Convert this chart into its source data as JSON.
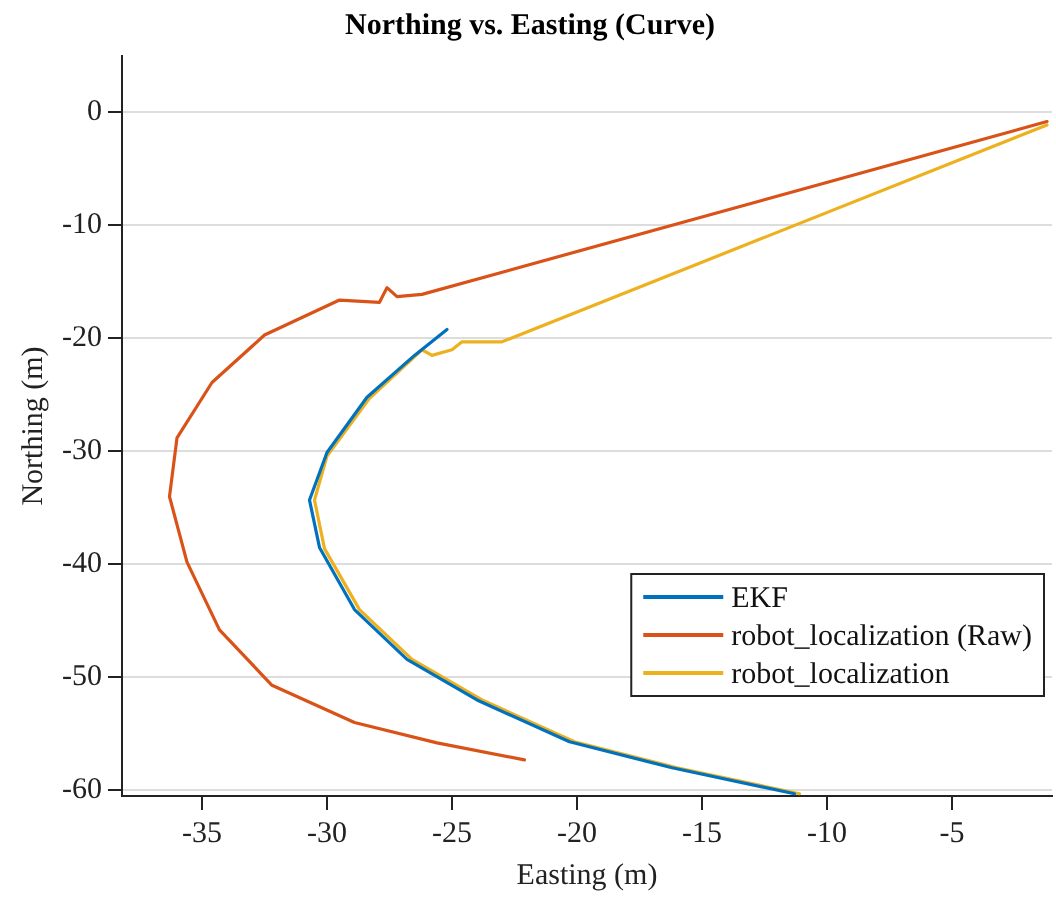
{
  "chart_data": {
    "type": "line",
    "title": "Northing vs. Easting (Curve)",
    "xlabel": "Easting (m)",
    "ylabel": "Northing (m)",
    "xlim": [
      -38.2,
      -1
    ],
    "ylim": [
      -60.5,
      5
    ],
    "xticks": [
      -35,
      -30,
      -25,
      -20,
      -15,
      -10,
      -5
    ],
    "yticks": [
      0,
      -10,
      -20,
      -30,
      -40,
      -50,
      -60
    ],
    "grid": "y",
    "legend": "bottom right",
    "line_style": "solid",
    "marker": "none",
    "series": [
      {
        "name": "EKF",
        "color": "#0072bd",
        "x": [
          -25.2,
          -26.5,
          -28.4,
          -30,
          -30.7,
          -30.7,
          -30.3,
          -28.9,
          -26.8,
          -24,
          -20.3,
          -16.2,
          -11.3
        ],
        "values": [
          -19.2,
          -21.5,
          -25.2,
          -30.1,
          -34.3,
          -34.3,
          -38.5,
          -44,
          -48.4,
          -52,
          -55.7,
          -58,
          -60.3
        ]
      },
      {
        "name": "robot_localization (Raw)",
        "color": "#d95319",
        "x": [
          -1.2,
          -26.2,
          -27.2,
          -27.6,
          -27.9,
          -29.5,
          -32.5,
          -34.6,
          -36,
          -36.3,
          -35.6,
          -34.3,
          -32.2,
          -28.9,
          -25.6,
          -22.1
        ],
        "values": [
          -0.8,
          -16.1,
          -16.3,
          -15.5,
          -16.8,
          -16.6,
          -19.7,
          -23.9,
          -28.8,
          -34,
          -39.8,
          -45.8,
          -50.7,
          -54,
          -55.8,
          -57.3
        ]
      },
      {
        "name": "robot_localization",
        "color": "#edb120",
        "x": [
          -1.2,
          -23,
          -24.6,
          -25,
          -25.8,
          -26.2,
          -28.3,
          -30,
          -30.5,
          -30.1,
          -28.7,
          -26.6,
          -23.8,
          -20.1,
          -16,
          -11.1
        ],
        "values": [
          -1.1,
          -20.3,
          -20.3,
          -21,
          -21.5,
          -21,
          -25.3,
          -30.4,
          -34.3,
          -38.6,
          -44,
          -48.4,
          -52,
          -55.7,
          -58,
          -60.3
        ]
      }
    ]
  }
}
